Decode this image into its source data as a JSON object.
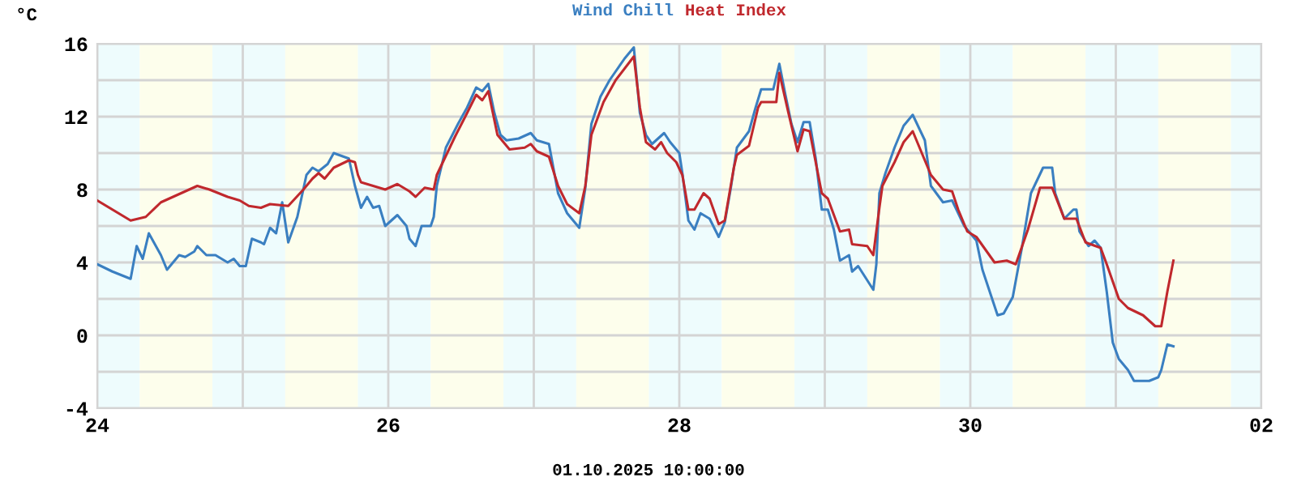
{
  "chart_data": {
    "type": "line",
    "ylabel": "°C",
    "annotations": [
      "01.10.2025 10:00:00"
    ],
    "legend": "top",
    "grid": true,
    "xlim": [
      "2025-09-24T00:00",
      "2025-10-02T00:00"
    ],
    "xticks": [
      {
        "value": "2025-09-24",
        "label": "24"
      },
      {
        "value": "2025-09-25",
        "label": null
      },
      {
        "value": "2025-09-26",
        "label": "26"
      },
      {
        "value": "2025-09-27",
        "label": null
      },
      {
        "value": "2025-09-28",
        "label": "28"
      },
      {
        "value": "2025-09-29",
        "label": null
      },
      {
        "value": "2025-09-30",
        "label": "30"
      },
      {
        "value": "2025-10-01",
        "label": null
      },
      {
        "value": "2025-10-02",
        "label": "02"
      }
    ],
    "ylim": [
      -4,
      16
    ],
    "yticks": [
      -4,
      {
        "value": -2,
        "label": null
      },
      0,
      {
        "value": 2,
        "label": null
      },
      4,
      {
        "value": 6,
        "label": null
      },
      8,
      {
        "value": 10,
        "label": null
      },
      12,
      {
        "value": 14,
        "label": null
      },
      16
    ],
    "bands": [
      {
        "axis": "x",
        "from": "2025-09-24T00:00",
        "to": "2025-09-24T07:00",
        "color": "#eefcfd"
      },
      {
        "axis": "x",
        "from": "2025-09-24T07:00",
        "to": "2025-09-24T19:00",
        "color": "#fdfeec"
      },
      {
        "axis": "x",
        "from": "2025-09-24T19:00",
        "to": "2025-09-25T07:00",
        "color": "#eefcfd"
      },
      {
        "axis": "x",
        "from": "2025-09-25T07:00",
        "to": "2025-09-25T19:00",
        "color": "#fdfeec"
      },
      {
        "axis": "x",
        "from": "2025-09-25T19:00",
        "to": "2025-09-26T07:00",
        "color": "#eefcfd"
      },
      {
        "axis": "x",
        "from": "2025-09-26T07:00",
        "to": "2025-09-26T19:00",
        "color": "#fdfeec"
      },
      {
        "axis": "x",
        "from": "2025-09-26T19:00",
        "to": "2025-09-27T07:00",
        "color": "#eefcfd"
      },
      {
        "axis": "x",
        "from": "2025-09-27T07:00",
        "to": "2025-09-27T19:00",
        "color": "#fdfeec"
      },
      {
        "axis": "x",
        "from": "2025-09-27T19:00",
        "to": "2025-09-28T07:00",
        "color": "#eefcfd"
      },
      {
        "axis": "x",
        "from": "2025-09-28T07:00",
        "to": "2025-09-28T19:00",
        "color": "#fdfeec"
      },
      {
        "axis": "x",
        "from": "2025-09-28T19:00",
        "to": "2025-09-29T07:00",
        "color": "#eefcfd"
      },
      {
        "axis": "x",
        "from": "2025-09-29T07:00",
        "to": "2025-09-29T19:00",
        "color": "#fdfeec"
      },
      {
        "axis": "x",
        "from": "2025-09-29T19:00",
        "to": "2025-09-30T07:00",
        "color": "#eefcfd"
      },
      {
        "axis": "x",
        "from": "2025-09-30T07:00",
        "to": "2025-09-30T19:00",
        "color": "#fdfeec"
      },
      {
        "axis": "x",
        "from": "2025-09-30T19:00",
        "to": "2025-10-01T07:00",
        "color": "#eefcfd"
      },
      {
        "axis": "x",
        "from": "2025-10-01T07:00",
        "to": "2025-10-01T19:00",
        "color": "#fdfeec"
      },
      {
        "axis": "x",
        "from": "2025-10-01T19:00",
        "to": "2025-10-02T00:00",
        "color": "#eefcfd"
      }
    ],
    "series": [
      {
        "name": "Wind Chill",
        "color": "#3a7fc1",
        "x": [
          "2025-09-24T00:00",
          "2025-09-24T02:30",
          "2025-09-24T05:30",
          "2025-09-24T06:30",
          "2025-09-24T07:30",
          "2025-09-24T08:30",
          "2025-09-24T10:30",
          "2025-09-24T11:30",
          "2025-09-24T13:30",
          "2025-09-24T14:30",
          "2025-09-24T16:00",
          "2025-09-24T16:30",
          "2025-09-24T18:00",
          "2025-09-24T19:30",
          "2025-09-24T21:30",
          "2025-09-24T22:30",
          "2025-09-24T23:30",
          "2025-09-25T00:30",
          "2025-09-25T01:30",
          "2025-09-25T03:00",
          "2025-09-25T03:30",
          "2025-09-25T04:30",
          "2025-09-25T05:30",
          "2025-09-25T06:30",
          "2025-09-25T07:30",
          "2025-09-25T09:00",
          "2025-09-25T10:30",
          "2025-09-25T11:30",
          "2025-09-25T12:30",
          "2025-09-25T14:00",
          "2025-09-25T15:00",
          "2025-09-25T17:30",
          "2025-09-25T18:30",
          "2025-09-25T19:00",
          "2025-09-25T19:30",
          "2025-09-25T20:30",
          "2025-09-25T21:30",
          "2025-09-25T22:30",
          "2025-09-25T23:30",
          "2025-09-26T01:30",
          "2025-09-26T03:00",
          "2025-09-26T03:30",
          "2025-09-26T04:30",
          "2025-09-26T05:30",
          "2025-09-26T07:00",
          "2025-09-26T07:30",
          "2025-09-26T08:00",
          "2025-09-26T09:30",
          "2025-09-26T11:30",
          "2025-09-26T13:00",
          "2025-09-26T14:30",
          "2025-09-26T15:30",
          "2025-09-26T16:30",
          "2025-09-26T17:30",
          "2025-09-26T18:30",
          "2025-09-26T19:30",
          "2025-09-26T21:30",
          "2025-09-26T23:30",
          "2025-09-27T00:30",
          "2025-09-27T02:30",
          "2025-09-27T03:30",
          "2025-09-27T04:00",
          "2025-09-27T05:30",
          "2025-09-27T07:30",
          "2025-09-27T08:30",
          "2025-09-27T09:30",
          "2025-09-27T11:00",
          "2025-09-27T12:30",
          "2025-09-27T15:00",
          "2025-09-27T16:30",
          "2025-09-27T17:30",
          "2025-09-27T18:30",
          "2025-09-27T19:30",
          "2025-09-27T21:30",
          "2025-09-27T22:30",
          "2025-09-28T00:00",
          "2025-09-28T00:30",
          "2025-09-28T01:30",
          "2025-09-28T02:30",
          "2025-09-28T03:30",
          "2025-09-28T05:00",
          "2025-09-28T06:30",
          "2025-09-28T07:30",
          "2025-09-28T08:30",
          "2025-09-28T09:30",
          "2025-09-28T11:30",
          "2025-09-28T12:30",
          "2025-09-28T13:30",
          "2025-09-28T15:30",
          "2025-09-28T16:30",
          "2025-09-28T17:30",
          "2025-09-28T18:30",
          "2025-09-28T19:30",
          "2025-09-28T20:30",
          "2025-09-28T21:30",
          "2025-09-28T22:30",
          "2025-09-28T23:30",
          "2025-09-29T00:30",
          "2025-09-29T01:30",
          "2025-09-29T02:30",
          "2025-09-29T04:00",
          "2025-09-29T04:30",
          "2025-09-29T05:30",
          "2025-09-29T08:00",
          "2025-09-29T08:30",
          "2025-09-29T09:00",
          "2025-09-29T10:00",
          "2025-09-29T11:30",
          "2025-09-29T13:00",
          "2025-09-29T14:30",
          "2025-09-29T16:30",
          "2025-09-29T17:30",
          "2025-09-29T19:30",
          "2025-09-29T21:00",
          "2025-09-29T23:00",
          "2025-09-30T01:00",
          "2025-09-30T02:00",
          "2025-09-30T04:30",
          "2025-09-30T05:30",
          "2025-09-30T07:00",
          "2025-09-30T08:30",
          "2025-09-30T10:00",
          "2025-09-30T12:00",
          "2025-09-30T13:30",
          "2025-09-30T14:00",
          "2025-09-30T15:30",
          "2025-09-30T17:00",
          "2025-09-30T17:30",
          "2025-09-30T18:00",
          "2025-09-30T19:30",
          "2025-09-30T20:30",
          "2025-09-30T21:30",
          "2025-09-30T22:30",
          "2025-09-30T23:30",
          "2025-10-01T00:30",
          "2025-10-01T02:00",
          "2025-10-01T03:00",
          "2025-10-01T05:30",
          "2025-10-01T07:00",
          "2025-10-01T07:30",
          "2025-10-01T08:30",
          "2025-10-01T09:30"
        ],
        "values": [
          3.9,
          3.5,
          3.1,
          4.9,
          4.2,
          5.6,
          4.4,
          3.6,
          4.4,
          4.3,
          4.6,
          4.9,
          4.4,
          4.4,
          4.0,
          4.2,
          3.8,
          3.8,
          5.3,
          5.1,
          5.0,
          5.9,
          5.6,
          7.3,
          5.1,
          6.5,
          8.8,
          9.2,
          9.0,
          9.4,
          10.0,
          9.7,
          8.2,
          7.6,
          7.0,
          7.6,
          7.0,
          7.1,
          6.0,
          6.6,
          6.0,
          5.3,
          4.9,
          6.0,
          6.0,
          6.5,
          8.2,
          10.3,
          11.6,
          12.5,
          13.6,
          13.4,
          13.8,
          12.2,
          11.0,
          10.7,
          10.8,
          11.1,
          10.7,
          10.5,
          8.7,
          7.8,
          6.7,
          5.9,
          8.1,
          11.6,
          13.1,
          14.0,
          15.2,
          15.8,
          12.2,
          11.0,
          10.5,
          11.1,
          10.6,
          10.0,
          8.9,
          6.3,
          5.8,
          6.7,
          6.4,
          5.4,
          6.2,
          8.1,
          10.3,
          11.2,
          12.4,
          13.5,
          13.5,
          14.9,
          13.2,
          11.6,
          10.6,
          11.7,
          11.7,
          9.7,
          6.9,
          6.9,
          5.8,
          4.1,
          4.4,
          3.5,
          3.8,
          2.5,
          3.9,
          7.8,
          8.9,
          10.3,
          11.5,
          12.1,
          10.7,
          8.2,
          7.3,
          7.4,
          6.0,
          5.2,
          3.6,
          1.1,
          1.2,
          2.1,
          4.8,
          7.8,
          9.2,
          9.2,
          7.8,
          6.4,
          6.9,
          6.9,
          5.7,
          4.9,
          5.2,
          4.8,
          2.4,
          -0.4,
          -1.3,
          -1.9,
          -2.5,
          -2.5,
          -2.3,
          -1.9,
          -0.5,
          -0.6
        ]
      },
      {
        "name": "Heat Index",
        "color": "#c0282d",
        "x": [
          "2025-09-24T00:00",
          "2025-09-24T05:30",
          "2025-09-24T08:00",
          "2025-09-24T10:30",
          "2025-09-24T16:30",
          "2025-09-24T18:30",
          "2025-09-24T21:30",
          "2025-09-24T23:30",
          "2025-09-25T01:00",
          "2025-09-25T03:00",
          "2025-09-25T04:30",
          "2025-09-25T07:30",
          "2025-09-25T10:00",
          "2025-09-25T11:30",
          "2025-09-25T12:30",
          "2025-09-25T13:30",
          "2025-09-25T15:00",
          "2025-09-25T17:30",
          "2025-09-25T18:30",
          "2025-09-25T19:00",
          "2025-09-25T19:30",
          "2025-09-25T21:30",
          "2025-09-25T23:30",
          "2025-09-26T01:30",
          "2025-09-26T03:30",
          "2025-09-26T04:30",
          "2025-09-26T06:00",
          "2025-09-26T07:30",
          "2025-09-26T08:00",
          "2025-09-26T11:00",
          "2025-09-26T13:00",
          "2025-09-26T14:30",
          "2025-09-26T15:30",
          "2025-09-26T16:30",
          "2025-09-26T18:00",
          "2025-09-26T20:00",
          "2025-09-26T22:30",
          "2025-09-26T23:30",
          "2025-09-27T00:30",
          "2025-09-27T02:30",
          "2025-09-27T04:00",
          "2025-09-27T05:30",
          "2025-09-27T07:30",
          "2025-09-27T08:30",
          "2025-09-27T09:30",
          "2025-09-27T11:30",
          "2025-09-27T13:30",
          "2025-09-27T16:30",
          "2025-09-27T17:30",
          "2025-09-27T18:30",
          "2025-09-27T20:00",
          "2025-09-27T21:00",
          "2025-09-27T22:00",
          "2025-09-27T23:30",
          "2025-09-28T00:30",
          "2025-09-28T01:30",
          "2025-09-28T02:30",
          "2025-09-28T04:00",
          "2025-09-28T05:00",
          "2025-09-28T06:30",
          "2025-09-28T07:30",
          "2025-09-28T09:00",
          "2025-09-28T09:30",
          "2025-09-28T11:30",
          "2025-09-28T13:00",
          "2025-09-28T13:30",
          "2025-09-28T16:00",
          "2025-09-28T16:30",
          "2025-09-28T18:00",
          "2025-09-28T19:30",
          "2025-09-28T20:30",
          "2025-09-28T21:30",
          "2025-09-28T23:30",
          "2025-09-29T00:30",
          "2025-09-29T02:30",
          "2025-09-29T04:00",
          "2025-09-29T04:30",
          "2025-09-29T07:00",
          "2025-09-29T08:00",
          "2025-09-29T09:00",
          "2025-09-29T09:30",
          "2025-09-29T11:30",
          "2025-09-29T13:00",
          "2025-09-29T14:30",
          "2025-09-29T16:00",
          "2025-09-29T17:30",
          "2025-09-29T19:30",
          "2025-09-29T21:00",
          "2025-09-29T22:00",
          "2025-09-29T23:30",
          "2025-09-30T01:00",
          "2025-09-30T02:30",
          "2025-09-30T04:00",
          "2025-09-30T06:00",
          "2025-09-30T07:30",
          "2025-09-30T09:30",
          "2025-09-30T11:30",
          "2025-09-30T13:30",
          "2025-09-30T15:30",
          "2025-09-30T17:30",
          "2025-09-30T19:00",
          "2025-09-30T21:30",
          "2025-09-30T22:30",
          "2025-10-01T00:30",
          "2025-10-01T02:00",
          "2025-10-01T04:30",
          "2025-10-01T06:30",
          "2025-10-01T07:30",
          "2025-10-01T08:30",
          "2025-10-01T09:30"
        ],
        "values": [
          7.4,
          6.3,
          6.5,
          7.3,
          8.2,
          8.0,
          7.6,
          7.4,
          7.1,
          7.0,
          7.2,
          7.1,
          8.0,
          8.6,
          8.9,
          8.6,
          9.2,
          9.6,
          9.5,
          8.8,
          8.4,
          8.2,
          8.0,
          8.3,
          7.9,
          7.6,
          8.1,
          8.0,
          8.8,
          10.9,
          12.2,
          13.2,
          12.9,
          13.4,
          11.0,
          10.2,
          10.3,
          10.5,
          10.1,
          9.8,
          8.2,
          7.2,
          6.7,
          8.2,
          11.0,
          12.8,
          14.0,
          15.3,
          12.5,
          10.6,
          10.2,
          10.6,
          10.0,
          9.5,
          8.8,
          6.9,
          6.9,
          7.8,
          7.5,
          6.1,
          6.3,
          9.2,
          9.9,
          10.4,
          12.5,
          12.8,
          12.8,
          14.4,
          12.2,
          10.1,
          11.3,
          11.2,
          7.8,
          7.5,
          5.7,
          5.8,
          5.0,
          4.9,
          4.4,
          7.0,
          8.2,
          9.5,
          10.6,
          11.2,
          10.0,
          8.8,
          8.0,
          7.9,
          6.9,
          5.7,
          5.4,
          4.7,
          4.0,
          4.1,
          3.9,
          5.8,
          8.1,
          8.1,
          6.4,
          6.4,
          5.1,
          4.8,
          3.9,
          2.0,
          1.5,
          1.1,
          0.5,
          0.5,
          2.4,
          4.1
        ]
      }
    ]
  }
}
